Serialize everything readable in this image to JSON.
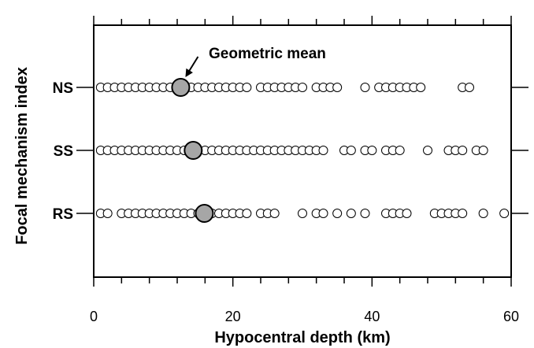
{
  "chart_data": {
    "type": "scatter",
    "title": "",
    "xlabel": "Hypocentral depth (km)",
    "ylabel": "Focal mechanism index",
    "xlim": [
      0,
      60
    ],
    "xticks": [
      0,
      20,
      40,
      60
    ],
    "categories": [
      "NS",
      "SS",
      "RS"
    ],
    "series": [
      {
        "category": "NS",
        "values": [
          1,
          2,
          3,
          4,
          5,
          6,
          7,
          8,
          9,
          10,
          11,
          12,
          13,
          14,
          15,
          16,
          17,
          18,
          19,
          20,
          21,
          22,
          24,
          25,
          26,
          27,
          28,
          29,
          30,
          32,
          33,
          34,
          35,
          39,
          41,
          42,
          43,
          44,
          45,
          46,
          47,
          53,
          54
        ],
        "geometric_mean": 12.5
      },
      {
        "category": "SS",
        "values": [
          1,
          2,
          3,
          4,
          5,
          6,
          7,
          8,
          9,
          10,
          11,
          12,
          13,
          14,
          15,
          16,
          17,
          18,
          19,
          20,
          21,
          22,
          23,
          24,
          25,
          26,
          27,
          28,
          29,
          30,
          31,
          32,
          33,
          36,
          37,
          39,
          40,
          42,
          43,
          44,
          48,
          51,
          52,
          53,
          55,
          56
        ],
        "geometric_mean": 14.3
      },
      {
        "category": "RS",
        "values": [
          1,
          2,
          4,
          5,
          6,
          7,
          8,
          9,
          10,
          11,
          12,
          13,
          14,
          15,
          17,
          18,
          19,
          20,
          21,
          22,
          24,
          25,
          26,
          30,
          32,
          33,
          35,
          37,
          39,
          42,
          43,
          44,
          45,
          49,
          50,
          51,
          52,
          53,
          56,
          59
        ],
        "geometric_mean": 15.9
      }
    ],
    "annotations": [
      {
        "text": "Geometric mean",
        "target": "NS"
      }
    ],
    "colors": {
      "point_fill": "#ffffff",
      "point_stroke": "#000000",
      "mean_fill": "#a6a6a6"
    }
  }
}
